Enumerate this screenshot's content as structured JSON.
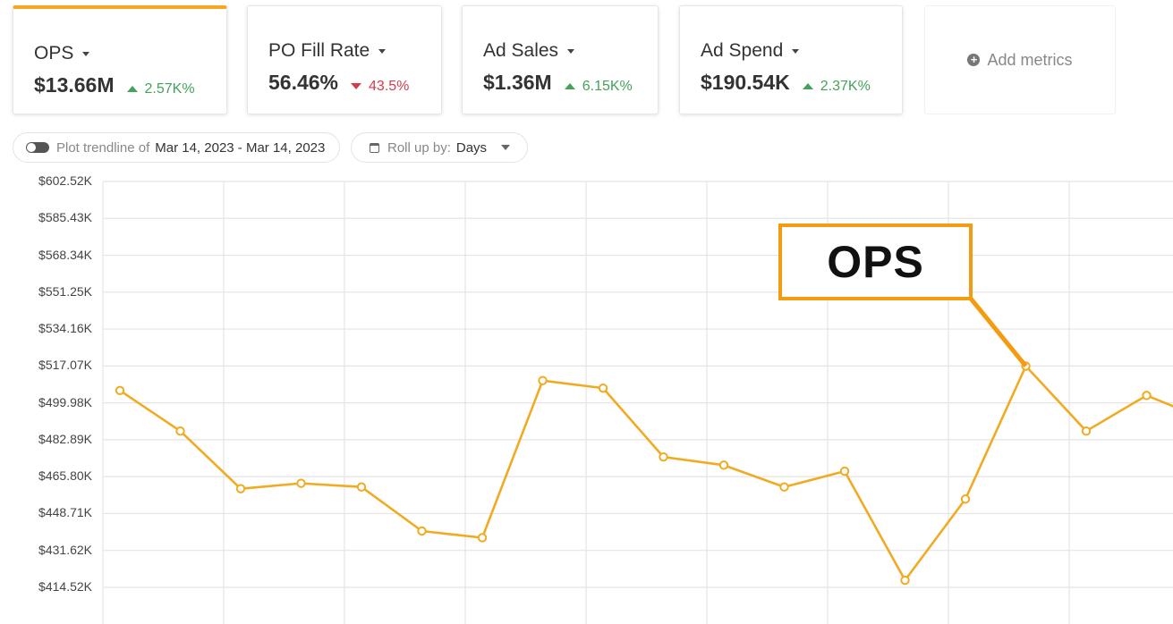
{
  "metrics": [
    {
      "name": "OPS",
      "value": "$13.66M",
      "delta": "2.57K%",
      "direction": "up"
    },
    {
      "name": "PO Fill Rate",
      "value": "56.46%",
      "delta": "43.5%",
      "direction": "down"
    },
    {
      "name": "Ad Sales",
      "value": "$1.36M",
      "delta": "6.15K%",
      "direction": "up"
    },
    {
      "name": "Ad Spend",
      "value": "$190.54K",
      "delta": "2.37K%",
      "direction": "up"
    }
  ],
  "add_metrics_label": "Add metrics",
  "trendline": {
    "label": "Plot trendline of",
    "range": "Mar 14, 2023 - Mar 14, 2023"
  },
  "rollup": {
    "label": "Roll up by:",
    "value": "Days"
  },
  "callout_label": "OPS",
  "colors": {
    "accent": "#f5a623",
    "line": "#f0ab22",
    "up": "#43a35b",
    "down": "#d73b4a",
    "callout": "#f39c12"
  },
  "chart_data": {
    "type": "line",
    "series": [
      {
        "values": [
          505.7,
          486.9,
          460.2,
          462.7,
          461.0,
          440.6,
          437.5,
          510.3,
          506.8,
          474.9,
          471.1,
          461.0,
          468.3,
          417.8,
          455.4,
          517.0,
          486.9,
          503.4,
          492.0
        ]
      }
    ],
    "y_ticks": [
      "$602.52K",
      "$585.43K",
      "$568.34K",
      "$551.25K",
      "$534.16K",
      "$517.07K",
      "$499.98K",
      "$482.89K",
      "$465.80K",
      "$448.71K",
      "$431.62K",
      "$414.52K"
    ],
    "ylim": [
      397.43,
      602.52
    ],
    "grid": true
  }
}
